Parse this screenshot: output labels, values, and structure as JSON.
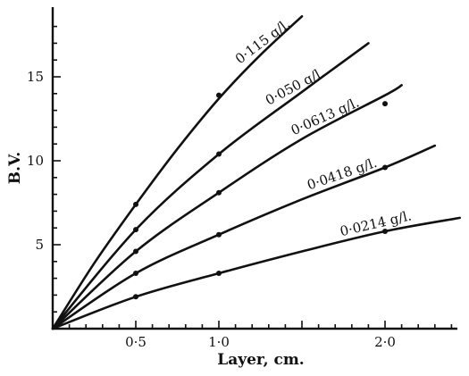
{
  "chart_data": {
    "type": "line",
    "title": "",
    "xlabel": "Layer, cm.",
    "ylabel": "B.V.",
    "xlim": [
      0,
      2.5
    ],
    "ylim": [
      0,
      19
    ],
    "x_ticks": [
      {
        "value": 0.5,
        "label": "0·5"
      },
      {
        "value": 1.0,
        "label": "1·0"
      },
      {
        "value": 2.0,
        "label": "2·0"
      }
    ],
    "y_ticks": [
      {
        "value": 5,
        "label": "5"
      },
      {
        "value": 10,
        "label": "10"
      },
      {
        "value": 15,
        "label": "15"
      }
    ],
    "grid": false,
    "legend": "none",
    "series": [
      {
        "name": "0·115 g/l.",
        "points": [
          [
            0.5,
            7.4
          ],
          [
            1.0,
            13.9
          ]
        ],
        "curve": [
          [
            0,
            0
          ],
          [
            0.25,
            3.9
          ],
          [
            0.5,
            7.4
          ],
          [
            0.75,
            10.7
          ],
          [
            1.0,
            13.7
          ],
          [
            1.25,
            16.3
          ],
          [
            1.5,
            18.6
          ]
        ]
      },
      {
        "name": "0·050 g/l.",
        "points": [
          [
            0.5,
            5.9
          ],
          [
            1.0,
            10.4
          ]
        ],
        "curve": [
          [
            0,
            0
          ],
          [
            0.5,
            5.9
          ],
          [
            1.0,
            10.4
          ],
          [
            1.5,
            14.1
          ],
          [
            1.9,
            17.0
          ]
        ]
      },
      {
        "name": "0·0613 g/l.",
        "points": [
          [
            0.5,
            4.6
          ],
          [
            1.0,
            8.1
          ],
          [
            2.0,
            13.4
          ]
        ],
        "curve": [
          [
            0,
            0
          ],
          [
            0.5,
            4.6
          ],
          [
            1.0,
            8.1
          ],
          [
            1.5,
            11.3
          ],
          [
            2.0,
            13.9
          ],
          [
            2.1,
            14.5
          ]
        ]
      },
      {
        "name": "0·0418 g/l.",
        "points": [
          [
            0.5,
            3.3
          ],
          [
            1.0,
            5.6
          ],
          [
            2.0,
            9.6
          ]
        ],
        "curve": [
          [
            0,
            0
          ],
          [
            0.5,
            3.3
          ],
          [
            1.0,
            5.6
          ],
          [
            1.5,
            7.7
          ],
          [
            2.0,
            9.6
          ],
          [
            2.3,
            10.9
          ]
        ]
      },
      {
        "name": "0·0214 g/l.",
        "points": [
          [
            0.5,
            1.9
          ],
          [
            1.0,
            3.3
          ],
          [
            2.0,
            5.8
          ]
        ],
        "curve": [
          [
            0,
            0
          ],
          [
            0.5,
            1.9
          ],
          [
            1.0,
            3.3
          ],
          [
            1.5,
            4.6
          ],
          [
            2.0,
            5.8
          ],
          [
            2.45,
            6.6
          ]
        ]
      }
    ]
  }
}
